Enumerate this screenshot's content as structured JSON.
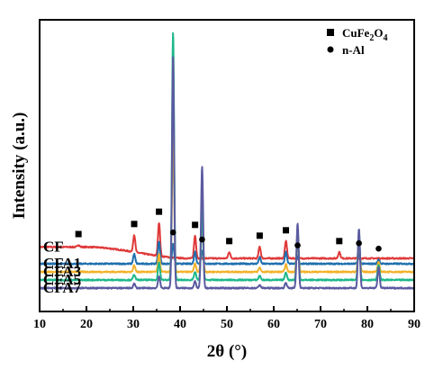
{
  "chart_data": {
    "type": "line",
    "xlabel": "2θ (°)",
    "ylabel": "Intensity (a.u.)",
    "xlim": [
      10,
      90
    ],
    "x_ticks": [
      10,
      20,
      30,
      40,
      50,
      60,
      70,
      80,
      90
    ],
    "y_ticks_shown": false,
    "grid": false,
    "legend_position": "top-right",
    "legend": [
      {
        "marker": "square",
        "label_main": "CuFe",
        "sub1": "2",
        "mid": "O",
        "sub2": "4"
      },
      {
        "marker": "circle",
        "label": "n-Al"
      }
    ],
    "series": [
      {
        "name": "CF",
        "color": "#e03a3a",
        "baseline_start": 0.86,
        "baseline_end": 0.65,
        "ramp_start": 20,
        "ramp_end": 42,
        "noise": 0.012,
        "peaks": [
          [
            18.3,
            0.04
          ],
          [
            30.2,
            0.32
          ],
          [
            35.5,
            0.62
          ],
          [
            43.2,
            0.42
          ],
          [
            50.5,
            0.12
          ],
          [
            57.0,
            0.22
          ],
          [
            62.6,
            0.32
          ],
          [
            74.0,
            0.12
          ]
        ],
        "markers": [
          {
            "type": "square",
            "x": 18.3
          },
          {
            "type": "square",
            "x": 30.2
          },
          {
            "type": "square",
            "x": 35.5
          },
          {
            "type": "square",
            "x": 43.2
          },
          {
            "type": "square",
            "x": 50.5
          },
          {
            "type": "square",
            "x": 57.0
          },
          {
            "type": "square",
            "x": 62.6
          },
          {
            "type": "square",
            "x": 74.0
          }
        ]
      },
      {
        "name": "CFA1",
        "color": "#1f6fad",
        "baseline_start": 0.55,
        "baseline_end": 0.55,
        "ramp_start": 10,
        "ramp_end": 90,
        "noise": 0.012,
        "peaks": [
          [
            30.2,
            0.18
          ],
          [
            35.5,
            0.42
          ],
          [
            38.5,
            0.38
          ],
          [
            43.2,
            0.22
          ],
          [
            44.7,
            0.25
          ],
          [
            57.0,
            0.12
          ],
          [
            62.6,
            0.22
          ],
          [
            65.1,
            0.14
          ],
          [
            78.2,
            0.18
          ],
          [
            82.4,
            0.08
          ]
        ],
        "markers": [
          {
            "type": "circle",
            "x": 38.5
          },
          {
            "type": "circle",
            "x": 44.7
          },
          {
            "type": "circle",
            "x": 65.1
          },
          {
            "type": "circle",
            "x": 78.2
          },
          {
            "type": "circle",
            "x": 82.4
          }
        ]
      },
      {
        "name": "CFA3",
        "color": "#f2b22a",
        "baseline_start": 0.4,
        "baseline_end": 0.4,
        "ramp_start": 10,
        "ramp_end": 90,
        "noise": 0.012,
        "peaks": [
          [
            30.2,
            0.12
          ],
          [
            35.5,
            0.32
          ],
          [
            38.5,
            2.6
          ],
          [
            43.2,
            0.15
          ],
          [
            44.7,
            1.0
          ],
          [
            57.0,
            0.08
          ],
          [
            62.6,
            0.14
          ],
          [
            65.1,
            0.65
          ],
          [
            78.2,
            0.6
          ],
          [
            82.4,
            0.18
          ]
        ],
        "markers": []
      },
      {
        "name": "CFA5",
        "color": "#1db88a",
        "baseline_start": 0.25,
        "baseline_end": 0.25,
        "ramp_start": 10,
        "ramp_end": 90,
        "noise": 0.012,
        "peaks": [
          [
            30.2,
            0.1
          ],
          [
            35.5,
            0.32
          ],
          [
            38.5,
            4.6
          ],
          [
            43.2,
            0.15
          ],
          [
            44.7,
            1.35
          ],
          [
            57.0,
            0.08
          ],
          [
            62.6,
            0.14
          ],
          [
            65.1,
            0.92
          ],
          [
            78.2,
            0.88
          ],
          [
            82.4,
            0.28
          ]
        ],
        "markers": []
      },
      {
        "name": "CFA7",
        "color": "#5b5aa0",
        "baseline_start": 0.1,
        "baseline_end": 0.1,
        "ramp_start": 10,
        "ramp_end": 90,
        "noise": 0.012,
        "peaks": [
          [
            30.2,
            0.08
          ],
          [
            35.5,
            0.22
          ],
          [
            38.5,
            4.3
          ],
          [
            43.2,
            0.12
          ],
          [
            44.7,
            2.25
          ],
          [
            57.0,
            0.06
          ],
          [
            62.6,
            0.1
          ],
          [
            65.1,
            1.2
          ],
          [
            78.2,
            1.1
          ],
          [
            82.4,
            0.38
          ]
        ],
        "markers": []
      }
    ]
  }
}
